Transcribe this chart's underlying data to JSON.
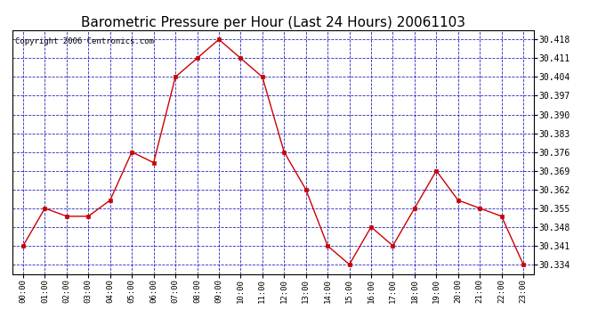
{
  "title": "Barometric Pressure per Hour (Last 24 Hours) 20061103",
  "copyright": "Copyright 2006 Centronics.com",
  "hours": [
    "00:00",
    "01:00",
    "02:00",
    "03:00",
    "04:00",
    "05:00",
    "06:00",
    "07:00",
    "08:00",
    "09:00",
    "10:00",
    "11:00",
    "12:00",
    "13:00",
    "14:00",
    "15:00",
    "16:00",
    "17:00",
    "18:00",
    "19:00",
    "20:00",
    "21:00",
    "22:00",
    "23:00"
  ],
  "values": [
    30.341,
    30.355,
    30.352,
    30.352,
    30.358,
    30.376,
    30.372,
    30.404,
    30.411,
    30.418,
    30.411,
    30.404,
    30.376,
    30.362,
    30.341,
    30.334,
    30.348,
    30.341,
    30.355,
    30.369,
    30.358,
    30.355,
    30.352,
    30.334
  ],
  "yticks": [
    30.334,
    30.341,
    30.348,
    30.355,
    30.362,
    30.369,
    30.376,
    30.383,
    30.39,
    30.397,
    30.404,
    30.411,
    30.418
  ],
  "ytick_labels": [
    "30.334",
    "30.341",
    "30.348",
    "30.355",
    "30.362",
    "30.369",
    "30.376",
    "30.383",
    "30.390",
    "30.397",
    "30.404",
    "30.411",
    "30.418"
  ],
  "ymin": 30.3305,
  "ymax": 30.4215,
  "line_color": "#cc0000",
  "marker_color": "#cc0000",
  "bg_color": "#ffffff",
  "plot_bg_color": "#ffffff",
  "grid_color": "#0000bb",
  "title_fontsize": 11,
  "copyright_fontsize": 6.5,
  "figwidth": 6.9,
  "figheight": 3.75,
  "dpi": 100
}
